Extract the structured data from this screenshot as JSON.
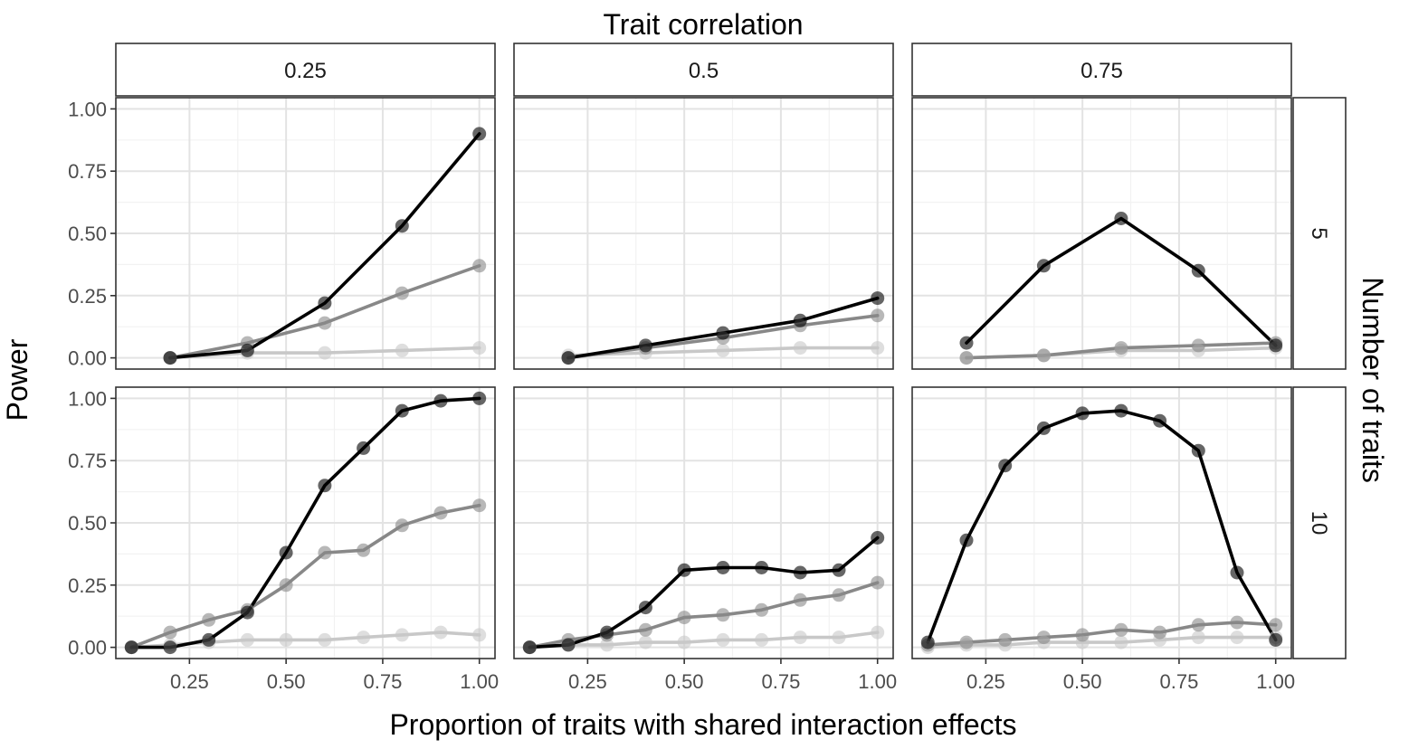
{
  "chart_data": {
    "type": "line",
    "top_strip_title": "Trait correlation",
    "right_strip_title": "Number of traits",
    "xlabel": "Proportion of traits with shared interaction effects",
    "ylabel": "Power",
    "xlim": [
      0.1,
      1.0
    ],
    "ylim": [
      0.0,
      1.0
    ],
    "x_ticks": [
      "0.25",
      "0.50",
      "0.75",
      "1.00"
    ],
    "y_ticks": [
      "0.00",
      "0.25",
      "0.50",
      "0.75",
      "1.00"
    ],
    "grid": true,
    "columns": [
      "0.25",
      "0.5",
      "0.75"
    ],
    "rows": [
      "5",
      "10"
    ],
    "series_colors": [
      "#000000",
      "#888888",
      "#c8c8c8"
    ],
    "panels": [
      {
        "column": "0.25",
        "row": "5",
        "series": [
          {
            "x": [
              0.2,
              0.4,
              0.6,
              0.8,
              1.0
            ],
            "y": [
              0.0,
              0.03,
              0.22,
              0.53,
              0.9
            ]
          },
          {
            "x": [
              0.2,
              0.4,
              0.6,
              0.8,
              1.0
            ],
            "y": [
              0.0,
              0.06,
              0.14,
              0.26,
              0.37
            ]
          },
          {
            "x": [
              0.2,
              0.4,
              0.6,
              0.8,
              1.0
            ],
            "y": [
              0.0,
              0.02,
              0.02,
              0.03,
              0.04
            ]
          }
        ]
      },
      {
        "column": "0.5",
        "row": "5",
        "series": [
          {
            "x": [
              0.2,
              0.4,
              0.6,
              0.8,
              1.0
            ],
            "y": [
              0.0,
              0.05,
              0.1,
              0.15,
              0.24
            ]
          },
          {
            "x": [
              0.2,
              0.4,
              0.6,
              0.8,
              1.0
            ],
            "y": [
              0.0,
              0.04,
              0.08,
              0.13,
              0.17
            ]
          },
          {
            "x": [
              0.2,
              0.4,
              0.6,
              0.8,
              1.0
            ],
            "y": [
              0.01,
              0.02,
              0.03,
              0.04,
              0.04
            ]
          }
        ]
      },
      {
        "column": "0.75",
        "row": "5",
        "series": [
          {
            "x": [
              0.2,
              0.4,
              0.6,
              0.8,
              1.0
            ],
            "y": [
              0.06,
              0.37,
              0.56,
              0.35,
              0.05
            ]
          },
          {
            "x": [
              0.2,
              0.4,
              0.6,
              0.8,
              1.0
            ],
            "y": [
              0.0,
              0.01,
              0.04,
              0.05,
              0.06
            ]
          },
          {
            "x": [
              0.2,
              0.4,
              0.6,
              0.8,
              1.0
            ],
            "y": [
              0.0,
              0.01,
              0.03,
              0.03,
              0.04
            ]
          }
        ]
      },
      {
        "column": "0.25",
        "row": "10",
        "series": [
          {
            "x": [
              0.1,
              0.2,
              0.3,
              0.4,
              0.5,
              0.6,
              0.7,
              0.8,
              0.9,
              1.0
            ],
            "y": [
              0.0,
              0.0,
              0.03,
              0.14,
              0.38,
              0.65,
              0.8,
              0.95,
              0.99,
              1.0
            ]
          },
          {
            "x": [
              0.1,
              0.2,
              0.3,
              0.4,
              0.5,
              0.6,
              0.7,
              0.8,
              0.9,
              1.0
            ],
            "y": [
              0.0,
              0.06,
              0.11,
              0.15,
              0.25,
              0.38,
              0.39,
              0.49,
              0.54,
              0.57
            ]
          },
          {
            "x": [
              0.1,
              0.2,
              0.3,
              0.4,
              0.5,
              0.6,
              0.7,
              0.8,
              0.9,
              1.0
            ],
            "y": [
              0.0,
              0.01,
              0.02,
              0.03,
              0.03,
              0.03,
              0.04,
              0.05,
              0.06,
              0.05
            ]
          }
        ]
      },
      {
        "column": "0.5",
        "row": "10",
        "series": [
          {
            "x": [
              0.1,
              0.2,
              0.3,
              0.4,
              0.5,
              0.6,
              0.7,
              0.8,
              0.9,
              1.0
            ],
            "y": [
              0.0,
              0.01,
              0.06,
              0.16,
              0.31,
              0.32,
              0.32,
              0.3,
              0.31,
              0.44
            ]
          },
          {
            "x": [
              0.1,
              0.2,
              0.3,
              0.4,
              0.5,
              0.6,
              0.7,
              0.8,
              0.9,
              1.0
            ],
            "y": [
              0.0,
              0.03,
              0.05,
              0.07,
              0.12,
              0.13,
              0.15,
              0.19,
              0.21,
              0.26
            ]
          },
          {
            "x": [
              0.1,
              0.2,
              0.3,
              0.4,
              0.5,
              0.6,
              0.7,
              0.8,
              0.9,
              1.0
            ],
            "y": [
              0.0,
              0.01,
              0.01,
              0.02,
              0.02,
              0.03,
              0.03,
              0.04,
              0.04,
              0.06
            ]
          }
        ]
      },
      {
        "column": "0.75",
        "row": "10",
        "series": [
          {
            "x": [
              0.1,
              0.2,
              0.3,
              0.4,
              0.5,
              0.6,
              0.7,
              0.8,
              0.9,
              1.0
            ],
            "y": [
              0.02,
              0.43,
              0.73,
              0.88,
              0.94,
              0.95,
              0.91,
              0.79,
              0.3,
              0.03
            ]
          },
          {
            "x": [
              0.1,
              0.2,
              0.3,
              0.4,
              0.5,
              0.6,
              0.7,
              0.8,
              0.9,
              1.0
            ],
            "y": [
              0.01,
              0.02,
              0.03,
              0.04,
              0.05,
              0.07,
              0.06,
              0.09,
              0.1,
              0.09
            ]
          },
          {
            "x": [
              0.1,
              0.2,
              0.3,
              0.4,
              0.5,
              0.6,
              0.7,
              0.8,
              0.9,
              1.0
            ],
            "y": [
              0.0,
              0.01,
              0.01,
              0.02,
              0.02,
              0.02,
              0.03,
              0.04,
              0.04,
              0.04
            ]
          }
        ]
      }
    ]
  }
}
